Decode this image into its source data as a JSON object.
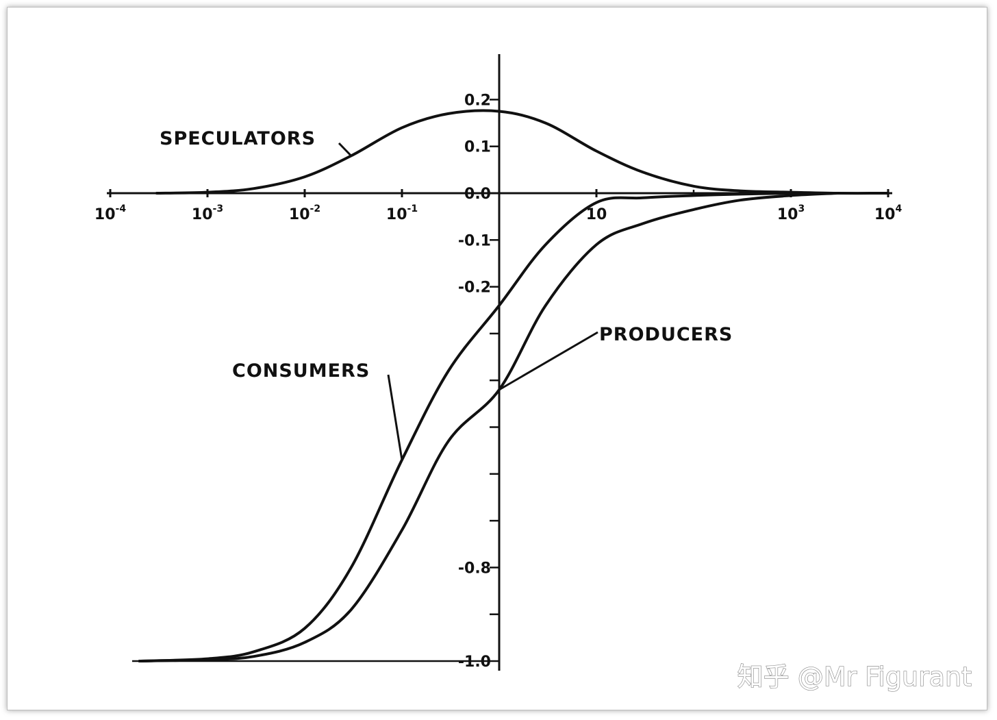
{
  "colors": {
    "ink": "#111111",
    "background": "#ffffff",
    "frame_border": "#bdbdbd"
  },
  "watermark": {
    "text": "知乎 @Mr Figurant"
  },
  "chart_data": {
    "type": "line",
    "title": "",
    "xlabel": "",
    "ylabel": "",
    "xscale": "log",
    "xlim": [
      0.0001,
      10000
    ],
    "ylim": [
      -1.0,
      0.25
    ],
    "grid": false,
    "legend": "none (series labeled directly with leader lines)",
    "x_ticks": [
      {
        "value": 0.0001,
        "base": "10",
        "exp": "-4"
      },
      {
        "value": 0.001,
        "base": "10",
        "exp": "-3"
      },
      {
        "value": 0.01,
        "base": "10",
        "exp": "-2"
      },
      {
        "value": 0.1,
        "base": "10",
        "exp": "-1"
      },
      {
        "value": 10,
        "base": "10",
        "exp": ""
      },
      {
        "value": 1000,
        "base": "10",
        "exp": "3"
      },
      {
        "value": 10000,
        "base": "10",
        "exp": "4"
      }
    ],
    "x_minor_ticks": [
      100
    ],
    "y_ticks": [
      {
        "value": 0.2,
        "label": "0.2"
      },
      {
        "value": 0.1,
        "label": "0.1"
      },
      {
        "value": 0.0,
        "label": "0.0"
      },
      {
        "value": -0.1,
        "label": "-0.1"
      },
      {
        "value": -0.2,
        "label": "-0.2"
      },
      {
        "value": -0.3,
        "label": ""
      },
      {
        "value": -0.4,
        "label": ""
      },
      {
        "value": -0.5,
        "label": ""
      },
      {
        "value": -0.6,
        "label": ""
      },
      {
        "value": -0.7,
        "label": ""
      },
      {
        "value": -0.8,
        "label": "-0.8"
      },
      {
        "value": -0.9,
        "label": ""
      },
      {
        "value": -1.0,
        "label": "-1.0"
      }
    ],
    "series": [
      {
        "name": "SPECULATORS",
        "x": [
          0.0003,
          0.001,
          0.003,
          0.01,
          0.03,
          0.1,
          0.3,
          1,
          3,
          10,
          30,
          100,
          300,
          1000,
          3000,
          10000
        ],
        "y": [
          0.0,
          0.002,
          0.01,
          0.035,
          0.08,
          0.14,
          0.17,
          0.175,
          0.15,
          0.09,
          0.045,
          0.015,
          0.005,
          0.002,
          0.0,
          0.0
        ]
      },
      {
        "name": "CONSUMERS",
        "x": [
          0.0002,
          0.001,
          0.003,
          0.01,
          0.03,
          0.1,
          0.3,
          1,
          3,
          10,
          30,
          100,
          300,
          1000
        ],
        "y": [
          -1.0,
          -0.995,
          -0.98,
          -0.93,
          -0.8,
          -0.57,
          -0.38,
          -0.24,
          -0.11,
          -0.02,
          -0.01,
          -0.005,
          -0.002,
          0.0
        ]
      },
      {
        "name": "PRODUCERS",
        "x": [
          0.0002,
          0.001,
          0.003,
          0.01,
          0.03,
          0.1,
          0.3,
          1,
          3,
          10,
          30,
          100,
          300,
          1000,
          3000
        ],
        "y": [
          -1.0,
          -0.997,
          -0.99,
          -0.96,
          -0.89,
          -0.72,
          -0.53,
          -0.42,
          -0.24,
          -0.11,
          -0.065,
          -0.035,
          -0.015,
          -0.005,
          0.0
        ]
      }
    ]
  }
}
